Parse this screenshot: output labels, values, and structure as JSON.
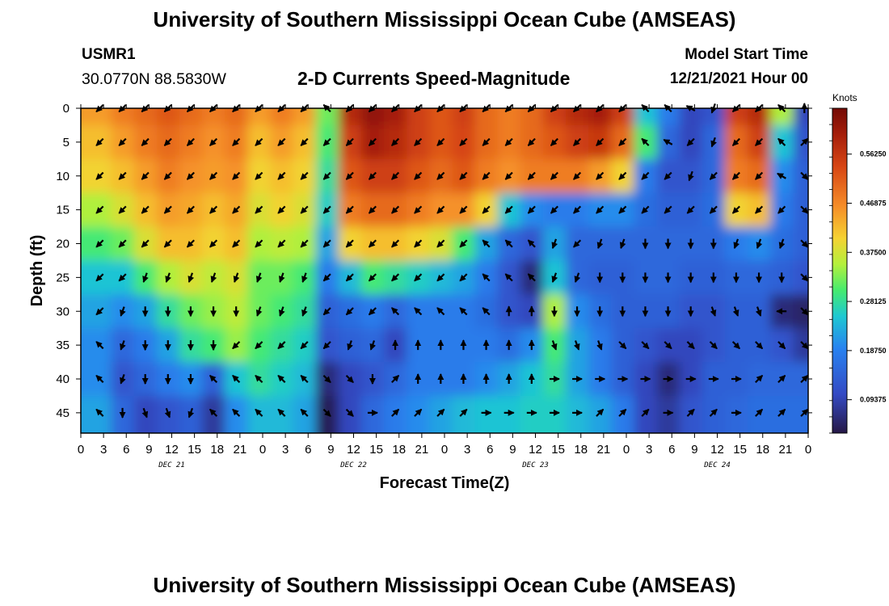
{
  "header": {
    "title": "University of Southern Mississippi Ocean Cube (AMSEAS)",
    "station_id": "USMR1",
    "coords": "30.0770N  88.5830W",
    "subtitle": "2-D Currents Speed-Magnitude",
    "model_start_label": "Model Start Time",
    "model_start_value": "12/21/2021 Hour 00"
  },
  "footer": {
    "title": "University of Southern Mississippi Ocean Cube (AMSEAS)"
  },
  "chart_data": {
    "type": "heatmap",
    "title": "2-D Currents Speed-Magnitude",
    "xlabel": "Forecast Time(Z)",
    "ylabel": "Depth (ft)",
    "x_range_hours": [
      0,
      96
    ],
    "y_range_ft": [
      0,
      48
    ],
    "x_tick_labels": [
      "0",
      "3",
      "6",
      "9",
      "12",
      "15",
      "18",
      "21",
      "0",
      "3",
      "6",
      "9",
      "12",
      "15",
      "18",
      "21",
      "0",
      "3",
      "6",
      "9",
      "12",
      "15",
      "18",
      "21",
      "0",
      "3",
      "6",
      "9",
      "12",
      "15",
      "18",
      "21",
      "0"
    ],
    "y_tick_labels": [
      "0",
      "5",
      "10",
      "15",
      "20",
      "25",
      "30",
      "35",
      "40",
      "45"
    ],
    "day_labels": [
      "DEC 21",
      "DEC 22",
      "DEC 23",
      "DEC 24"
    ],
    "day_label_hours": [
      12,
      36,
      60,
      84
    ],
    "colorbar": {
      "unit_label": "Knots",
      "ticks": [
        "0.56250",
        "0.46875",
        "0.37500",
        "0.28125",
        "0.18750",
        "0.09375"
      ],
      "tick_values": [
        0.5625,
        0.46875,
        0.375,
        0.28125,
        0.1875,
        0.09375
      ],
      "range": [
        0.03,
        0.65
      ]
    },
    "arrow_hours": [
      2.5,
      5.5,
      8.5,
      11.5,
      14.5,
      17.5,
      20.5,
      23.5,
      26.5,
      29.5,
      32.5,
      35.5,
      38.5,
      41.5,
      44.5,
      47.5,
      50.5,
      53.5,
      56.5,
      59.5,
      62.5,
      65.5,
      68.5,
      71.5,
      74.5,
      77.5,
      80.5,
      83.5,
      86.5,
      89.5,
      92.5,
      95.5
    ],
    "arrow_depths_ft": [
      0,
      5,
      10,
      15,
      20,
      25,
      30,
      35,
      40,
      45
    ],
    "speed_knots_approx": [
      [
        0.45,
        0.48,
        0.5,
        0.52,
        0.5,
        0.48,
        0.5,
        0.45,
        0.48,
        0.45,
        0.32,
        0.58,
        0.62,
        0.6,
        0.55,
        0.52,
        0.55,
        0.5,
        0.48,
        0.5,
        0.55,
        0.58,
        0.6,
        0.55,
        0.25,
        0.18,
        0.1,
        0.12,
        0.55,
        0.58,
        0.35,
        0.1
      ],
      [
        0.42,
        0.45,
        0.48,
        0.5,
        0.48,
        0.46,
        0.48,
        0.42,
        0.45,
        0.42,
        0.3,
        0.55,
        0.6,
        0.58,
        0.55,
        0.52,
        0.54,
        0.5,
        0.48,
        0.5,
        0.52,
        0.55,
        0.56,
        0.5,
        0.3,
        0.15,
        0.1,
        0.15,
        0.5,
        0.55,
        0.25,
        0.12
      ],
      [
        0.4,
        0.42,
        0.45,
        0.48,
        0.46,
        0.45,
        0.46,
        0.4,
        0.42,
        0.4,
        0.28,
        0.52,
        0.55,
        0.55,
        0.52,
        0.5,
        0.52,
        0.48,
        0.46,
        0.48,
        0.48,
        0.48,
        0.45,
        0.4,
        0.18,
        0.12,
        0.12,
        0.15,
        0.48,
        0.5,
        0.2,
        0.14
      ],
      [
        0.35,
        0.38,
        0.42,
        0.45,
        0.44,
        0.42,
        0.44,
        0.38,
        0.4,
        0.38,
        0.26,
        0.48,
        0.5,
        0.5,
        0.48,
        0.46,
        0.46,
        0.4,
        0.25,
        0.2,
        0.18,
        0.18,
        0.2,
        0.2,
        0.16,
        0.14,
        0.14,
        0.16,
        0.4,
        0.42,
        0.18,
        0.14
      ],
      [
        0.3,
        0.32,
        0.38,
        0.42,
        0.42,
        0.4,
        0.42,
        0.35,
        0.36,
        0.35,
        0.22,
        0.4,
        0.42,
        0.42,
        0.4,
        0.38,
        0.3,
        0.22,
        0.15,
        0.12,
        0.22,
        0.15,
        0.15,
        0.15,
        0.15,
        0.15,
        0.15,
        0.15,
        0.18,
        0.2,
        0.16,
        0.14
      ],
      [
        0.25,
        0.25,
        0.3,
        0.35,
        0.38,
        0.36,
        0.38,
        0.32,
        0.32,
        0.3,
        0.18,
        0.24,
        0.3,
        0.28,
        0.26,
        0.24,
        0.22,
        0.18,
        0.12,
        0.06,
        0.25,
        0.15,
        0.14,
        0.14,
        0.15,
        0.15,
        0.14,
        0.14,
        0.15,
        0.15,
        0.14,
        0.12
      ],
      [
        0.22,
        0.2,
        0.22,
        0.28,
        0.32,
        0.34,
        0.36,
        0.32,
        0.3,
        0.28,
        0.14,
        0.16,
        0.18,
        0.15,
        0.18,
        0.18,
        0.18,
        0.16,
        0.12,
        0.1,
        0.35,
        0.2,
        0.16,
        0.14,
        0.14,
        0.14,
        0.12,
        0.12,
        0.14,
        0.14,
        0.06,
        0.05
      ],
      [
        0.2,
        0.15,
        0.18,
        0.22,
        0.28,
        0.3,
        0.34,
        0.3,
        0.28,
        0.26,
        0.12,
        0.14,
        0.15,
        0.1,
        0.18,
        0.18,
        0.18,
        0.18,
        0.16,
        0.2,
        0.3,
        0.22,
        0.18,
        0.14,
        0.12,
        0.1,
        0.1,
        0.12,
        0.14,
        0.14,
        0.12,
        0.08
      ],
      [
        0.2,
        0.12,
        0.15,
        0.18,
        0.2,
        0.14,
        0.25,
        0.28,
        0.26,
        0.24,
        0.06,
        0.1,
        0.12,
        0.15,
        0.18,
        0.18,
        0.18,
        0.2,
        0.22,
        0.25,
        0.28,
        0.22,
        0.18,
        0.14,
        0.1,
        0.06,
        0.1,
        0.14,
        0.14,
        0.15,
        0.15,
        0.15
      ],
      [
        0.22,
        0.15,
        0.1,
        0.12,
        0.14,
        0.08,
        0.2,
        0.24,
        0.24,
        0.22,
        0.04,
        0.1,
        0.15,
        0.18,
        0.2,
        0.22,
        0.24,
        0.25,
        0.25,
        0.26,
        0.26,
        0.24,
        0.22,
        0.18,
        0.1,
        0.08,
        0.12,
        0.14,
        0.15,
        0.16,
        0.16,
        0.16
      ]
    ],
    "direction_deg_approx": [
      [
        225,
        225,
        225,
        225,
        225,
        225,
        225,
        225,
        225,
        225,
        315,
        225,
        225,
        225,
        225,
        225,
        225,
        225,
        225,
        225,
        225,
        225,
        225,
        225,
        315,
        315,
        300,
        200,
        225,
        225,
        315,
        0
      ],
      [
        225,
        225,
        225,
        225,
        225,
        225,
        225,
        225,
        225,
        225,
        225,
        225,
        225,
        225,
        225,
        225,
        225,
        225,
        225,
        225,
        225,
        225,
        225,
        225,
        315,
        300,
        225,
        200,
        225,
        225,
        315,
        45
      ],
      [
        225,
        225,
        225,
        225,
        225,
        225,
        225,
        225,
        225,
        225,
        225,
        225,
        225,
        225,
        225,
        225,
        225,
        225,
        225,
        225,
        225,
        225,
        225,
        225,
        225,
        225,
        200,
        225,
        225,
        225,
        300,
        135
      ],
      [
        225,
        225,
        225,
        225,
        225,
        225,
        225,
        225,
        225,
        225,
        225,
        225,
        225,
        225,
        225,
        225,
        225,
        225,
        225,
        225,
        225,
        225,
        225,
        225,
        225,
        225,
        225,
        225,
        225,
        225,
        225,
        135
      ],
      [
        225,
        225,
        225,
        225,
        225,
        225,
        225,
        225,
        225,
        225,
        225,
        225,
        225,
        225,
        225,
        225,
        225,
        315,
        315,
        315,
        200,
        225,
        200,
        200,
        180,
        180,
        180,
        180,
        200,
        200,
        200,
        135
      ],
      [
        225,
        225,
        200,
        200,
        200,
        200,
        200,
        200,
        200,
        200,
        225,
        225,
        225,
        225,
        225,
        225,
        225,
        315,
        315,
        315,
        200,
        200,
        180,
        180,
        180,
        180,
        180,
        180,
        180,
        180,
        180,
        135
      ],
      [
        225,
        200,
        180,
        180,
        180,
        180,
        180,
        200,
        200,
        200,
        225,
        225,
        225,
        315,
        315,
        315,
        315,
        315,
        0,
        0,
        180,
        180,
        180,
        180,
        180,
        180,
        180,
        160,
        160,
        160,
        270,
        135
      ],
      [
        315,
        200,
        180,
        180,
        180,
        180,
        225,
        225,
        225,
        225,
        225,
        200,
        200,
        0,
        0,
        0,
        0,
        0,
        0,
        0,
        160,
        160,
        160,
        135,
        135,
        135,
        135,
        135,
        135,
        135,
        135,
        135
      ],
      [
        315,
        200,
        180,
        180,
        180,
        315,
        315,
        315,
        315,
        315,
        135,
        135,
        180,
        45,
        0,
        0,
        0,
        0,
        0,
        0,
        90,
        90,
        90,
        90,
        90,
        90,
        90,
        90,
        90,
        45,
        45,
        45
      ],
      [
        315,
        180,
        160,
        160,
        200,
        315,
        315,
        315,
        315,
        315,
        135,
        135,
        90,
        45,
        45,
        45,
        45,
        90,
        90,
        90,
        90,
        90,
        45,
        45,
        45,
        90,
        45,
        45,
        90,
        45,
        45,
        45
      ]
    ]
  }
}
